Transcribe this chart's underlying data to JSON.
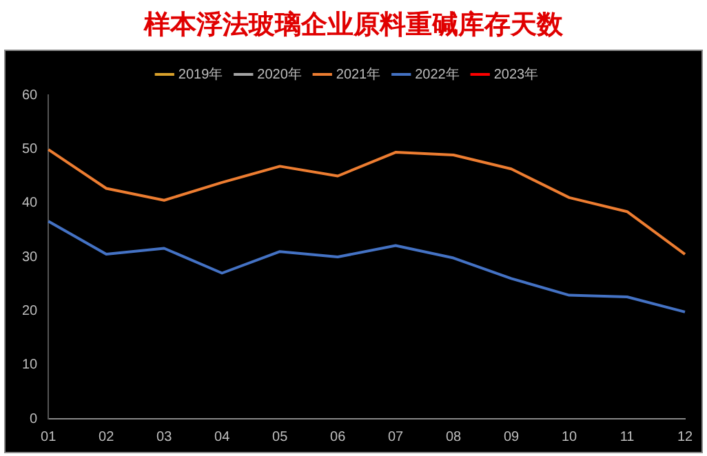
{
  "chart_data": {
    "type": "line",
    "title": "样本浮法玻璃企业原料重碱库存天数",
    "categories": [
      "01",
      "02",
      "03",
      "04",
      "05",
      "06",
      "07",
      "08",
      "09",
      "10",
      "11",
      "12"
    ],
    "series": [
      {
        "name": "2019年",
        "color": "#d9a12b",
        "values": [
          null,
          null,
          null,
          null,
          null,
          null,
          null,
          null,
          null,
          null,
          null,
          null
        ]
      },
      {
        "name": "2020年",
        "color": "#a5a5a5",
        "values": [
          null,
          null,
          null,
          null,
          null,
          null,
          null,
          null,
          null,
          null,
          null,
          null
        ]
      },
      {
        "name": "2021年",
        "color": "#ed7d31",
        "values": [
          49.9,
          42.7,
          40.5,
          43.8,
          46.8,
          45.0,
          49.4,
          48.9,
          46.3,
          41.0,
          38.4,
          30.5
        ]
      },
      {
        "name": "2022年",
        "color": "#4472c4",
        "values": [
          36.6,
          30.5,
          31.6,
          27.0,
          31.0,
          30.0,
          32.1,
          29.8,
          26.0,
          22.9,
          22.6,
          19.8
        ]
      },
      {
        "name": "2023年",
        "color": "#ff0000",
        "values": [
          null,
          null,
          null,
          null,
          null,
          null,
          null,
          null,
          null,
          null,
          null,
          null
        ]
      }
    ],
    "ylim": [
      0,
      60
    ],
    "yticks": [
      0,
      10,
      20,
      30,
      40,
      50,
      60
    ],
    "grid": false,
    "legend": "top",
    "marker": "none",
    "line_style": "solid"
  }
}
